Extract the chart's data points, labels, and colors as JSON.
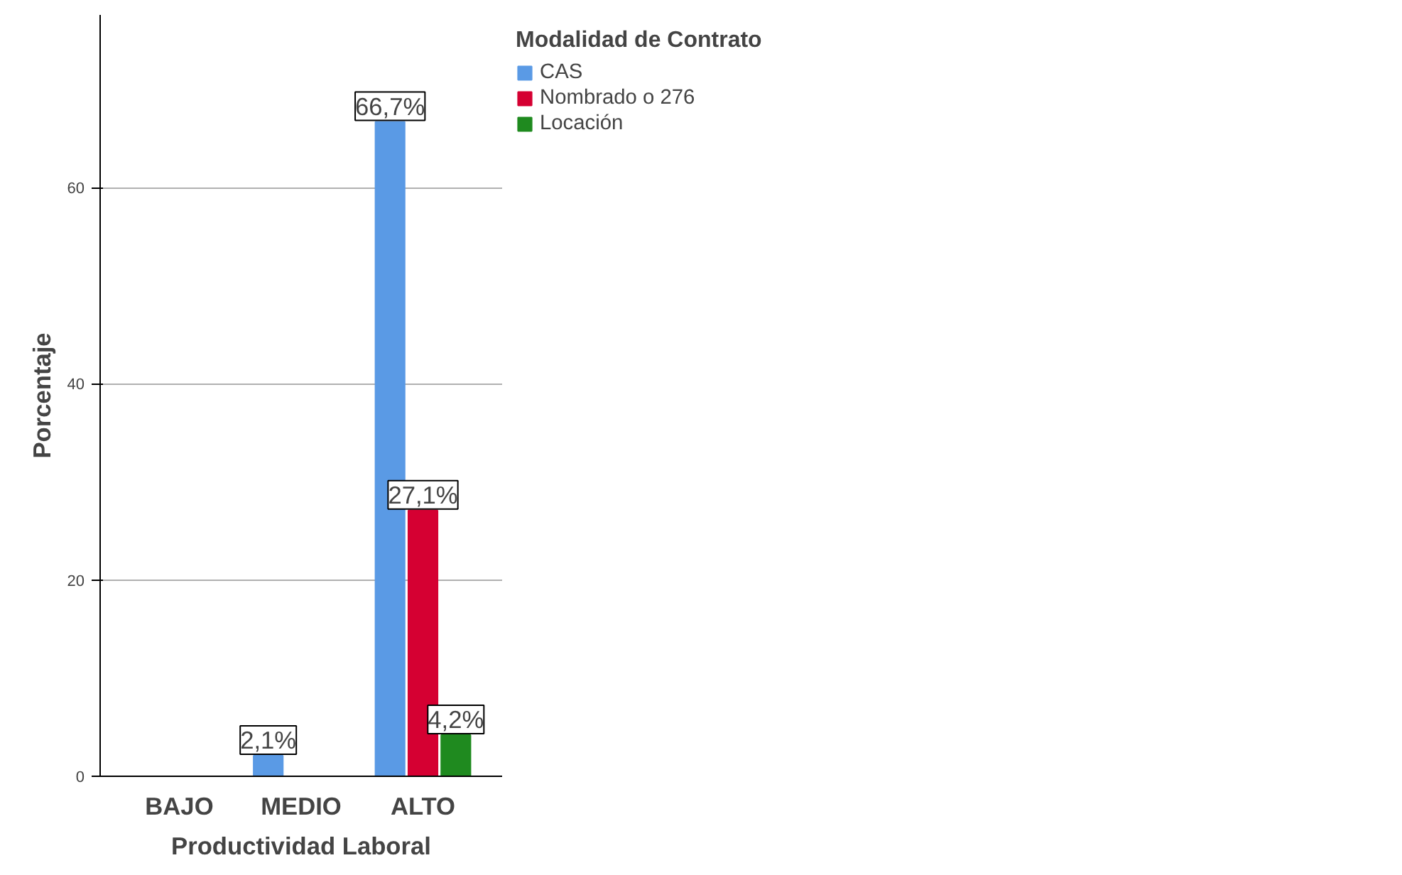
{
  "chart_data": {
    "type": "bar",
    "xlabel": "Productividad Laboral",
    "ylabel": "Porcentaje",
    "legend_title": "Modalidad de Contrato",
    "categories": [
      "BAJO",
      "MEDIO",
      "ALTO"
    ],
    "series": [
      {
        "name": "CAS",
        "color": "#5a9ae5",
        "values": [
          null,
          2.1,
          66.7
        ],
        "value_labels": [
          null,
          "2,1%",
          "66,7%"
        ]
      },
      {
        "name": "Nombrado o 276",
        "color": "#d50032",
        "values": [
          null,
          null,
          27.1
        ],
        "value_labels": [
          null,
          null,
          "27,1%"
        ]
      },
      {
        "name": "Locación",
        "color": "#1f8a1f",
        "values": [
          null,
          null,
          4.2
        ],
        "value_labels": [
          null,
          null,
          "4,2%"
        ]
      }
    ],
    "ylim": [
      0,
      77.6
    ],
    "yticks": [
      0,
      20,
      40,
      60
    ],
    "grid": "y",
    "legend": "top right"
  }
}
